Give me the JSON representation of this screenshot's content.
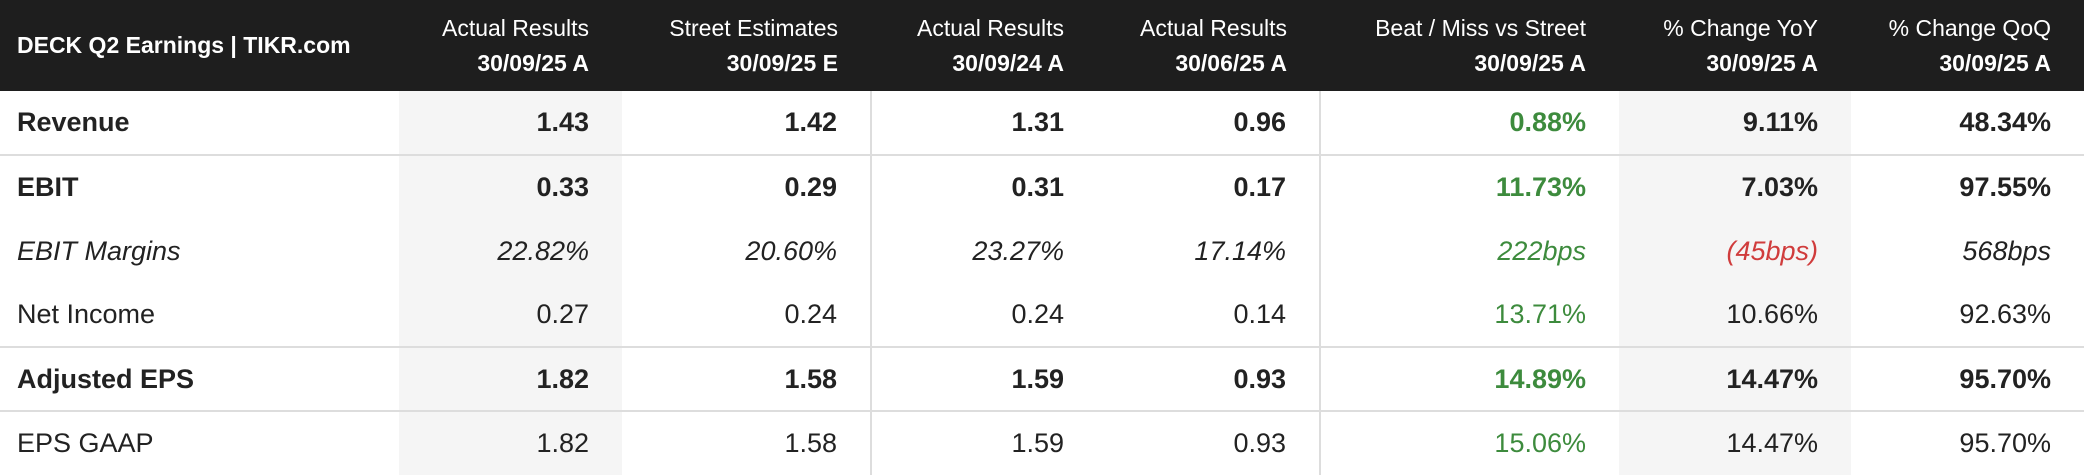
{
  "header": {
    "title": "DECK Q2 Earnings | TIKR.com"
  },
  "columns": [
    {
      "line1": "Actual Results",
      "line2": "30/09/25 A"
    },
    {
      "line1": "Street Estimates",
      "line2": "30/09/25 E"
    },
    {
      "line1": "Actual Results",
      "line2": "30/09/24 A"
    },
    {
      "line1": "Actual Results",
      "line2": "30/06/25 A"
    },
    {
      "line1": "Beat / Miss vs Street",
      "line2": "30/09/25 A"
    },
    {
      "line1": "% Change YoY",
      "line2": "30/09/25 A"
    },
    {
      "line1": "% Change QoQ",
      "line2": "30/09/25 A"
    }
  ],
  "rows": [
    {
      "label": "Revenue",
      "cells": [
        "1.43",
        "1.42",
        "1.31",
        "0.96",
        "0.88%",
        "9.11%",
        "48.34%"
      ]
    },
    {
      "label": "EBIT",
      "cells": [
        "0.33",
        "0.29",
        "0.31",
        "0.17",
        "11.73%",
        "7.03%",
        "97.55%"
      ]
    },
    {
      "label": "EBIT Margins",
      "cells": [
        "22.82%",
        "20.60%",
        "23.27%",
        "17.14%",
        "222bps",
        "(45bps)",
        "568bps"
      ]
    },
    {
      "label": "Net Income",
      "cells": [
        "0.27",
        "0.24",
        "0.24",
        "0.14",
        "13.71%",
        "10.66%",
        "92.63%"
      ]
    },
    {
      "label": "Adjusted EPS",
      "cells": [
        "1.82",
        "1.58",
        "1.59",
        "0.93",
        "14.89%",
        "14.47%",
        "95.70%"
      ]
    },
    {
      "label": "EPS GAAP",
      "cells": [
        "1.82",
        "1.58",
        "1.59",
        "0.93",
        "15.06%",
        "14.47%",
        "95.70%"
      ]
    }
  ]
}
